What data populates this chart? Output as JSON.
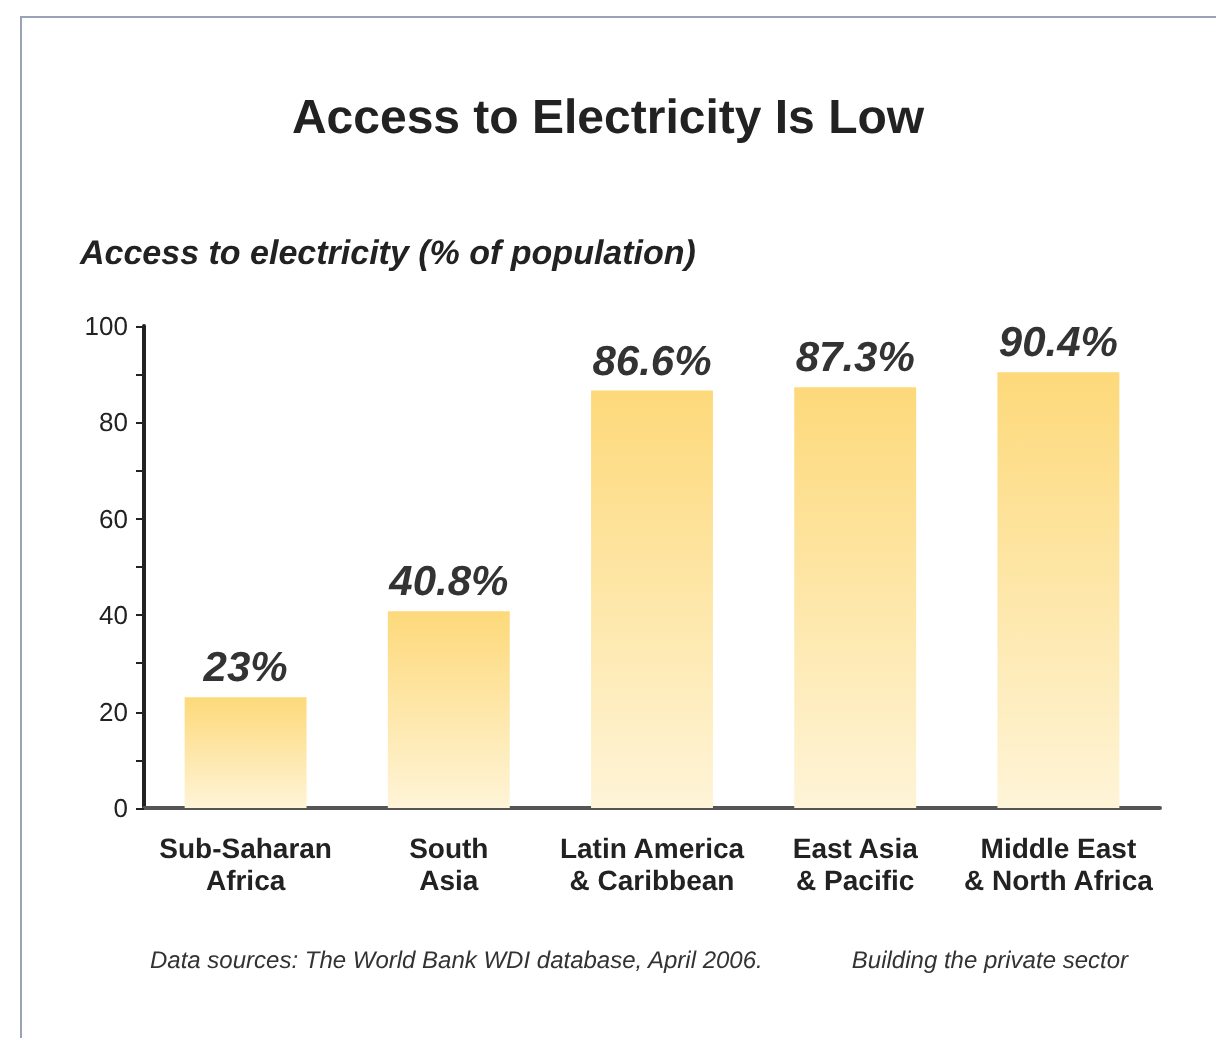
{
  "chart_data": {
    "type": "bar",
    "title": "Access to Electricity Is Low",
    "ylabel": "Access to electricity (% of population)",
    "categories": [
      "Sub-Saharan\nAfrica",
      "South\nAsia",
      "Latin America\n& Caribbean",
      "East Asia\n& Pacific",
      "Middle East\n& North Africa"
    ],
    "values": [
      23,
      40.8,
      86.6,
      87.3,
      90.4
    ],
    "value_labels": [
      "23%",
      "40.8%",
      "86.6%",
      "87.3%",
      "90.4%"
    ],
    "color": "#fdd97a",
    "ylim": [
      0,
      100
    ],
    "yticks": [
      0,
      {
        "value": 10,
        "label": null
      },
      20,
      {
        "value": 30,
        "label": null
      },
      40,
      {
        "value": 50,
        "label": null
      },
      60,
      {
        "value": 70,
        "label": null
      },
      80,
      {
        "value": 90,
        "label": null
      },
      100
    ],
    "annotations": [
      "Data sources: The World Bank WDI database, April 2006.",
      "Building the private sector"
    ]
  }
}
